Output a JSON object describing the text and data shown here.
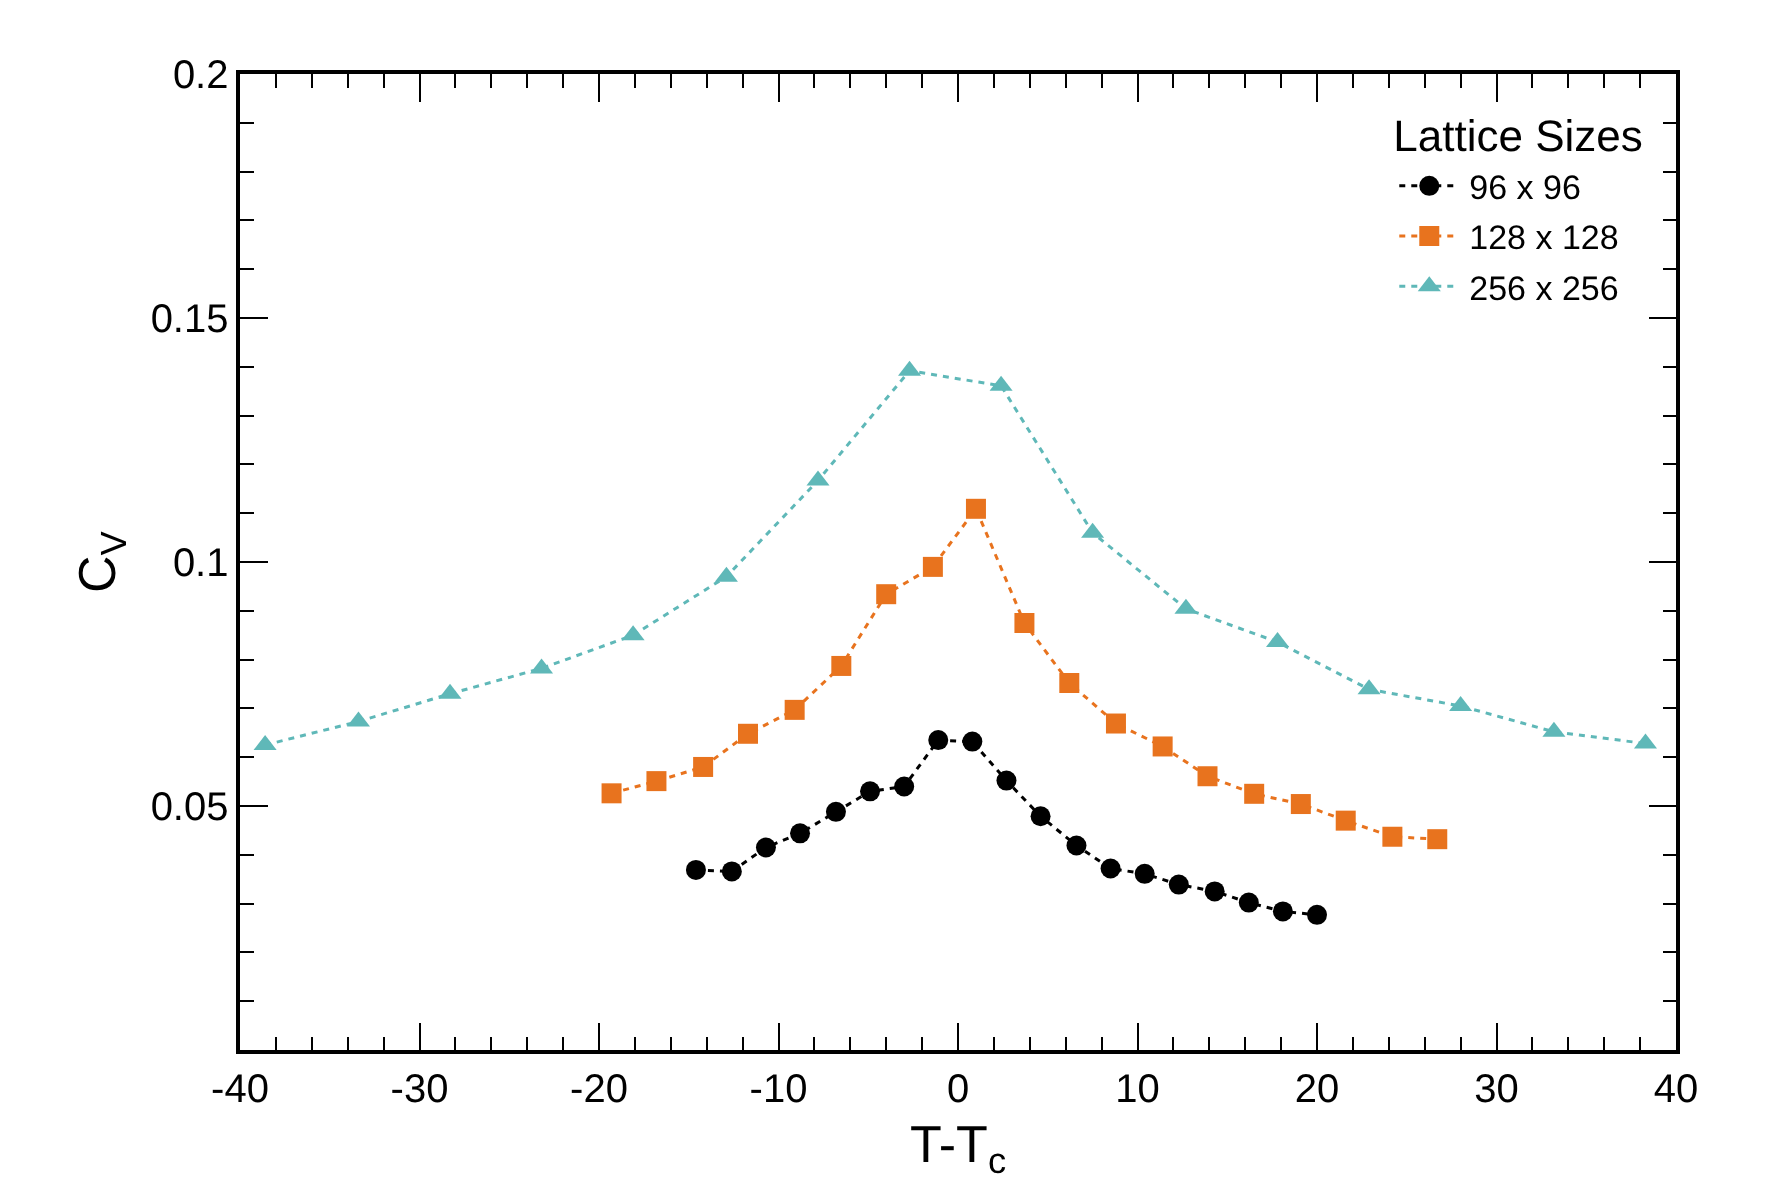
{
  "chart_data": {
    "type": "line",
    "xlabel": "T-T$_{c}$",
    "ylabel": "C$_{V}$",
    "legend_title": "Lattice Sizes",
    "legend": "top right",
    "line_style": "dotted",
    "grid": false,
    "xlim": [
      -40,
      40
    ],
    "xticks": [
      -40,
      -30,
      -20,
      -10,
      0,
      10,
      20,
      30,
      40
    ],
    "ylim": [
      0,
      0.2
    ],
    "yticks": [
      0.05,
      0.1,
      0.15,
      0.2
    ],
    "series": [
      {
        "name": "96 x 96",
        "color": "#000000",
        "marker": "circle",
        "x": [
          -14.6,
          -12.6,
          -10.7,
          -8.8,
          -6.8,
          -4.9,
          -3.0,
          -1.1,
          0.8,
          2.7,
          4.6,
          6.6,
          8.5,
          10.4,
          12.3,
          14.3,
          16.2,
          18.1,
          20.0
        ],
        "values": [
          0.0369,
          0.0366,
          0.0415,
          0.0444,
          0.0488,
          0.053,
          0.054,
          0.0635,
          0.0632,
          0.0552,
          0.0479,
          0.0419,
          0.0372,
          0.0361,
          0.0339,
          0.0325,
          0.0302,
          0.0284,
          0.0277
        ]
      },
      {
        "name": "128 x 128",
        "color": "#e8731e",
        "marker": "square",
        "x": [
          -19.3,
          -16.8,
          -14.2,
          -11.7,
          -9.1,
          -6.5,
          -4.0,
          -1.4,
          1.0,
          3.7,
          6.2,
          8.8,
          11.4,
          13.9,
          16.5,
          19.1,
          21.6,
          24.2,
          26.7
        ],
        "values": [
          0.0526,
          0.0551,
          0.058,
          0.0648,
          0.0697,
          0.0787,
          0.0934,
          0.099,
          0.1109,
          0.0875,
          0.0752,
          0.0669,
          0.0622,
          0.0561,
          0.0525,
          0.0504,
          0.047,
          0.0437,
          0.0432
        ]
      },
      {
        "name": "256 x 256",
        "color": "#5fb8b8",
        "marker": "triangle",
        "x": [
          -38.6,
          -33.4,
          -28.3,
          -23.2,
          -18.1,
          -12.9,
          -7.8,
          -2.7,
          2.4,
          7.5,
          12.7,
          17.8,
          22.9,
          28.0,
          33.2,
          38.3
        ],
        "values": [
          0.0625,
          0.0673,
          0.073,
          0.0782,
          0.085,
          0.097,
          0.1167,
          0.1392,
          0.1361,
          0.106,
          0.0904,
          0.0836,
          0.0739,
          0.0705,
          0.0652,
          0.0628
        ]
      }
    ]
  }
}
